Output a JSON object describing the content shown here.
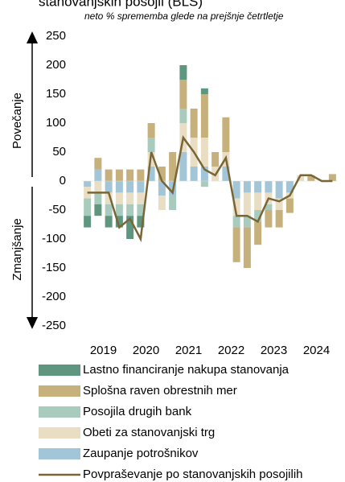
{
  "chart_data": {
    "type": "bar",
    "title": "stanovanjskih posojil (BLS)",
    "subtitle": "neto % sprememba glede na prejšnje četrtletje",
    "annotations": [
      "Povečanje",
      "Zmanjšanje"
    ],
    "categories": [
      null,
      "2019",
      null,
      null,
      null,
      "2020",
      null,
      null,
      null,
      "2021",
      null,
      null,
      null,
      "2022",
      null,
      null,
      null,
      "2023",
      null,
      null,
      null,
      "2024",
      null,
      null
    ],
    "ylim": [
      -250,
      250
    ],
    "yticks": [
      250,
      200,
      150,
      100,
      50,
      0,
      -50,
      -100,
      -150,
      -200,
      -250
    ],
    "stacked": true,
    "series": [
      {
        "name": "Lastno financiranje nakupa stanovanja",
        "color": "#5e9680",
        "values": [
          -20,
          -20,
          -20,
          -20,
          -40,
          -20,
          0,
          0,
          0,
          25,
          0,
          10,
          0,
          0,
          0,
          0,
          0,
          0,
          0,
          0,
          0,
          0,
          0,
          0
        ]
      },
      {
        "name": "Splošna raven obrestnih mer",
        "color": "#c6b07c",
        "values": [
          0,
          20,
          20,
          20,
          20,
          20,
          25,
          25,
          50,
          50,
          50,
          75,
          25,
          60,
          -60,
          -70,
          -40,
          -30,
          -30,
          -25,
          0,
          10,
          0,
          12
        ]
      },
      {
        "name": "Posojila drugih bank",
        "color": "#a9cbbd",
        "values": [
          -30,
          -20,
          -20,
          -20,
          -20,
          -20,
          25,
          0,
          -25,
          25,
          0,
          -10,
          0,
          0,
          -20,
          -20,
          -20,
          -10,
          0,
          0,
          0,
          0,
          0,
          0
        ]
      },
      {
        "name": "Obeti za stanovanjski trg",
        "color": "#e9dec3",
        "values": [
          -20,
          -20,
          -20,
          -20,
          -20,
          -20,
          25,
          -25,
          0,
          50,
          50,
          50,
          25,
          25,
          -30,
          -40,
          -30,
          -20,
          -20,
          -10,
          10,
          0,
          0,
          0
        ]
      },
      {
        "name": "Zaupanje potrošnikov",
        "color": "#a2c6d8",
        "values": [
          -10,
          20,
          -20,
          -20,
          -20,
          -20,
          25,
          -25,
          -25,
          50,
          25,
          25,
          0,
          25,
          -30,
          -20,
          -20,
          -20,
          -30,
          -20,
          0,
          0,
          0,
          0
        ]
      },
      {
        "name": "Povpraševanje po stanovanjskih posojilih",
        "type": "line",
        "color": "#7a6535",
        "values": [
          -20,
          -20,
          -20,
          -80,
          -65,
          -100,
          50,
          0,
          -20,
          75,
          50,
          20,
          10,
          40,
          -60,
          -60,
          -70,
          -30,
          -35,
          -25,
          10,
          10,
          0,
          0
        ]
      }
    ]
  }
}
